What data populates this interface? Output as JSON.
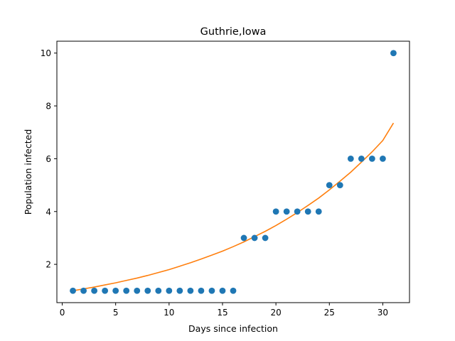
{
  "chart_data": {
    "type": "scatter",
    "title": "Guthrie,Iowa",
    "xlabel": "Days since infection",
    "ylabel": "Population infected",
    "xlim": [
      -0.5,
      32.5
    ],
    "ylim": [
      0.55,
      10.45
    ],
    "x_ticks": [
      0,
      5,
      10,
      15,
      20,
      25,
      30
    ],
    "y_ticks": [
      2,
      4,
      6,
      8,
      10
    ],
    "grid": false,
    "series": [
      {
        "type": "scatter",
        "color": "#1f77b4",
        "points": [
          [
            1,
            1
          ],
          [
            2,
            1
          ],
          [
            3,
            1
          ],
          [
            4,
            1
          ],
          [
            5,
            1
          ],
          [
            6,
            1
          ],
          [
            7,
            1
          ],
          [
            8,
            1
          ],
          [
            9,
            1
          ],
          [
            10,
            1
          ],
          [
            11,
            1
          ],
          [
            12,
            1
          ],
          [
            13,
            1
          ],
          [
            14,
            1
          ],
          [
            15,
            1
          ],
          [
            16,
            1
          ],
          [
            17,
            3
          ],
          [
            18,
            3
          ],
          [
            19,
            3
          ],
          [
            20,
            4
          ],
          [
            21,
            4
          ],
          [
            22,
            4
          ],
          [
            23,
            4
          ],
          [
            24,
            4
          ],
          [
            25,
            5
          ],
          [
            26,
            5
          ],
          [
            27,
            6
          ],
          [
            28,
            6
          ],
          [
            29,
            6
          ],
          [
            30,
            6
          ],
          [
            31,
            10
          ]
        ]
      },
      {
        "type": "line",
        "color": "#ff7f0e",
        "points": [
          [
            1,
            1.0
          ],
          [
            2,
            1.07
          ],
          [
            3,
            1.14
          ],
          [
            4,
            1.22
          ],
          [
            5,
            1.3
          ],
          [
            6,
            1.39
          ],
          [
            7,
            1.48
          ],
          [
            8,
            1.58
          ],
          [
            9,
            1.69
          ],
          [
            10,
            1.8
          ],
          [
            11,
            1.93
          ],
          [
            12,
            2.06
          ],
          [
            13,
            2.2
          ],
          [
            14,
            2.35
          ],
          [
            15,
            2.5
          ],
          [
            16,
            2.67
          ],
          [
            17,
            2.85
          ],
          [
            18,
            3.05
          ],
          [
            19,
            3.25
          ],
          [
            20,
            3.47
          ],
          [
            21,
            3.71
          ],
          [
            22,
            3.96
          ],
          [
            23,
            4.23
          ],
          [
            24,
            4.51
          ],
          [
            25,
            4.82
          ],
          [
            26,
            5.15
          ],
          [
            27,
            5.49
          ],
          [
            28,
            5.87
          ],
          [
            29,
            6.26
          ],
          [
            30,
            6.69
          ],
          [
            31,
            7.35
          ]
        ]
      }
    ]
  }
}
